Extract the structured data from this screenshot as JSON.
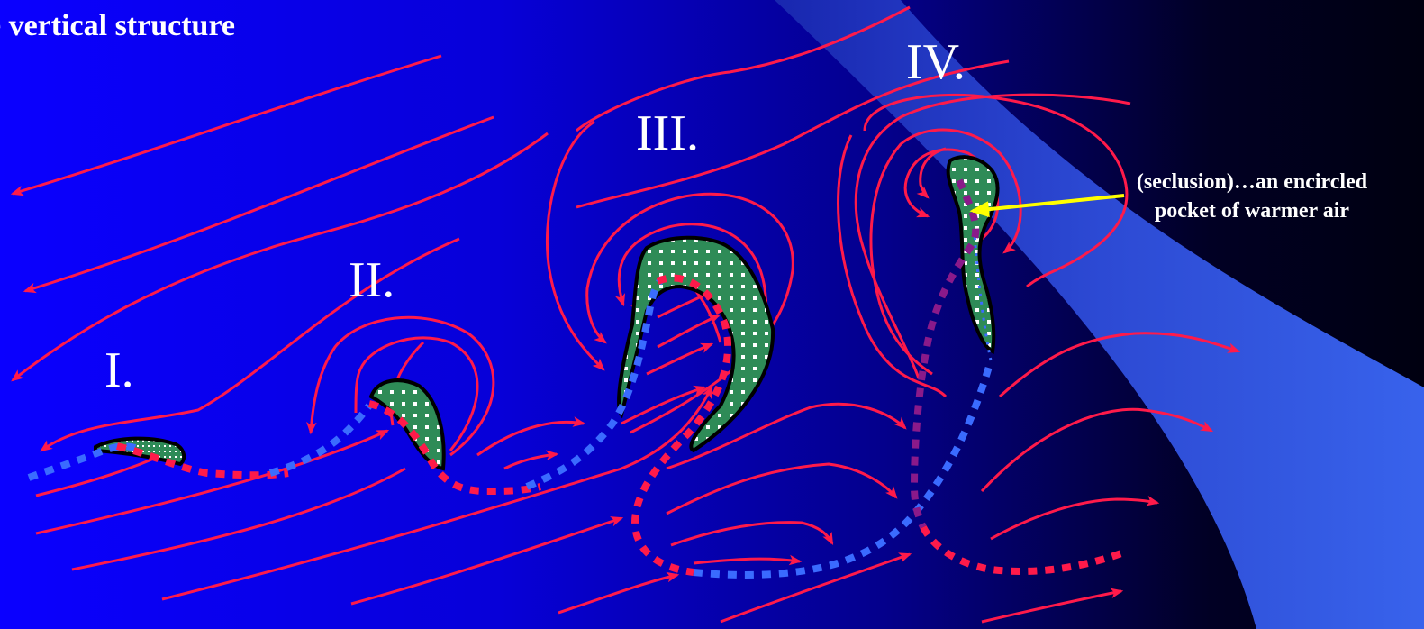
{
  "heading": "e vertical structure",
  "stages": [
    "I.",
    "II.",
    "III.",
    "IV."
  ],
  "annotation": {
    "line1": "(seclusion)…an encircled",
    "line2": "pocket of warmer air"
  },
  "colors": {
    "flow_lines": "#ff1a4a",
    "warm_front": "#ff1a4a",
    "cold_front": "#3a6bff",
    "occluded_front": "#8a1a8a",
    "warm_air_fill": "#2e8b57",
    "annotation_arrow": "#ffff00",
    "frontal_surface": "#3a60f0"
  }
}
